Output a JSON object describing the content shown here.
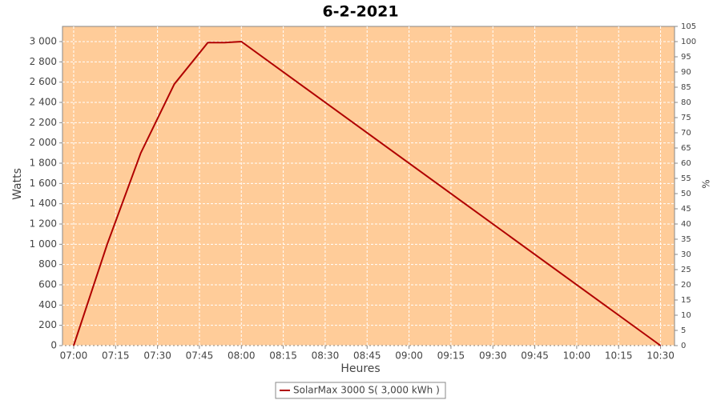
{
  "chart_data": {
    "type": "line",
    "title": "6-2-2021",
    "x_label": "Heures",
    "y_label": "Watts",
    "y2_label": "%",
    "x": [
      "07:00",
      "07:12",
      "07:24",
      "07:36",
      "07:48",
      "07:54",
      "08:00",
      "10:30"
    ],
    "series": [
      {
        "name": "SolarMax 3000 S( 3,000 kWh )",
        "color": "#b00000",
        "values": [
          0,
          1000,
          1900,
          2580,
          2990,
          2990,
          3000,
          0
        ]
      }
    ],
    "xlim": [
      "06:56",
      "10:35"
    ],
    "xticks": [
      "07:00",
      "07:15",
      "07:30",
      "07:45",
      "08:00",
      "08:15",
      "08:30",
      "08:45",
      "09:00",
      "09:15",
      "09:30",
      "09:45",
      "10:00",
      "10:15",
      "10:30"
    ],
    "ylim": [
      0,
      3150
    ],
    "yticks": [
      0,
      200,
      400,
      600,
      800,
      {
        "value": 1000,
        "label": "1 000"
      },
      {
        "value": 1200,
        "label": "1 200"
      },
      {
        "value": 1400,
        "label": "1 400"
      },
      {
        "value": 1600,
        "label": "1 600"
      },
      {
        "value": 1800,
        "label": "1 800"
      },
      {
        "value": 2000,
        "label": "2 000"
      },
      {
        "value": 2200,
        "label": "2 200"
      },
      {
        "value": 2400,
        "label": "2 400"
      },
      {
        "value": 2600,
        "label": "2 600"
      },
      {
        "value": 2800,
        "label": "2 800"
      },
      {
        "value": 3000,
        "label": "3 000"
      }
    ],
    "y2lim": [
      0,
      105
    ],
    "y2ticks": [
      0,
      5,
      10,
      15,
      20,
      25,
      30,
      35,
      40,
      45,
      50,
      55,
      60,
      65,
      70,
      75,
      80,
      85,
      90,
      95,
      100,
      105
    ],
    "grid": true,
    "plot_background": "#ffcc99",
    "legend": "bottom"
  }
}
